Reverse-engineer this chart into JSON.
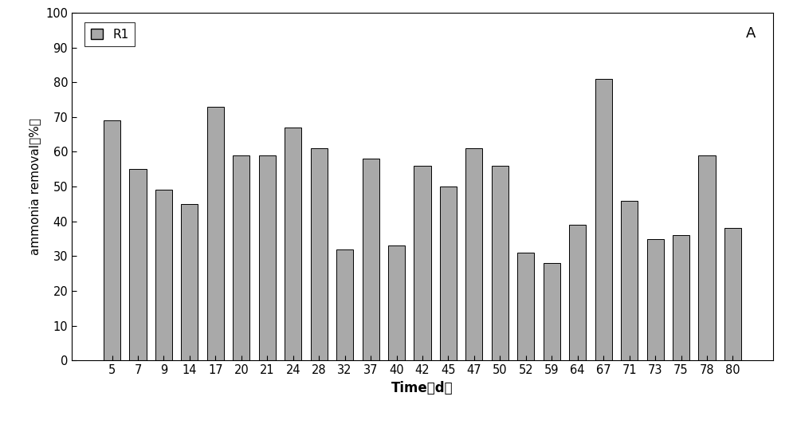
{
  "categories": [
    5,
    7,
    9,
    14,
    17,
    20,
    21,
    24,
    28,
    32,
    37,
    40,
    42,
    45,
    47,
    50,
    52,
    59,
    64,
    67,
    71,
    73,
    75,
    78,
    80
  ],
  "values": [
    69,
    55,
    49,
    45,
    73,
    59,
    59,
    67,
    61,
    32,
    58,
    33,
    56,
    50,
    61,
    56,
    31,
    28,
    39,
    81,
    46,
    35,
    36,
    59,
    38
  ],
  "bar_color": "#a9a9a9",
  "bar_edgecolor": "#000000",
  "ylabel": "ammonia removal（%）",
  "xlabel": "Time（d）",
  "ylim": [
    0,
    100
  ],
  "yticks": [
    0,
    10,
    20,
    30,
    40,
    50,
    60,
    70,
    80,
    90,
    100
  ],
  "legend_label": "R1",
  "annotation": "A",
  "background_color": "#ffffff"
}
